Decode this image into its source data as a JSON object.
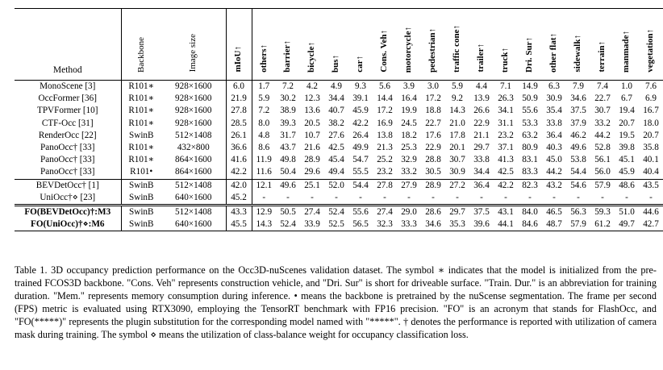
{
  "headers": {
    "method": "Method",
    "backbone": "Backbone",
    "image_size": "Image size",
    "miou": "mIoU↑",
    "classes": [
      "others↑",
      "barrier↑",
      "bicycle↑",
      "bus↑",
      "car↑",
      "Cons. Veh↑",
      "motorcycle↑",
      "pedestrian↑",
      "traffic cone↑",
      "trailer↑",
      "truck↑",
      "Dri. Sur↑",
      "other flat↑",
      "sidewalk↑",
      "terrain↑",
      "manmade↑",
      "vegetation↑"
    ]
  },
  "rows_group1": [
    {
      "method": "MonoScene [3]",
      "backbone": "R101∗",
      "size": "928×1600",
      "miou": "6.0",
      "vals": [
        "1.7",
        "7.2",
        "4.2",
        "4.9",
        "9.3",
        "5.6",
        "3.9",
        "3.0",
        "5.9",
        "4.4",
        "7.1",
        "14.9",
        "6.3",
        "7.9",
        "7.4",
        "1.0",
        "7.6"
      ]
    },
    {
      "method": "OccFormer [36]",
      "backbone": "R101∗",
      "size": "928×1600",
      "miou": "21.9",
      "vals": [
        "5.9",
        "30.2",
        "12.3",
        "34.4",
        "39.1",
        "14.4",
        "16.4",
        "17.2",
        "9.2",
        "13.9",
        "26.3",
        "50.9",
        "30.9",
        "34.6",
        "22.7",
        "6.7",
        "6.9"
      ]
    },
    {
      "method": "TPVFormer [10]",
      "backbone": "R101∗",
      "size": "928×1600",
      "miou": "27.8",
      "vals": [
        "7.2",
        "38.9",
        "13.6",
        "40.7",
        "45.9",
        "17.2",
        "19.9",
        "18.8",
        "14.3",
        "26.6",
        "34.1",
        "55.6",
        "35.4",
        "37.5",
        "30.7",
        "19.4",
        "16.7"
      ]
    },
    {
      "method": "CTF-Occ [31]",
      "backbone": "R101∗",
      "size": "928×1600",
      "miou": "28.5",
      "vals": [
        "8.0",
        "39.3",
        "20.5",
        "38.2",
        "42.2",
        "16.9",
        "24.5",
        "22.7",
        "21.0",
        "22.9",
        "31.1",
        "53.3",
        "33.8",
        "37.9",
        "33.2",
        "20.7",
        "18.0"
      ]
    },
    {
      "method": "RenderOcc [22]",
      "backbone": "SwinB",
      "size": "512×1408",
      "miou": "26.1",
      "vals": [
        "4.8",
        "31.7",
        "10.7",
        "27.6",
        "26.4",
        "13.8",
        "18.2",
        "17.6",
        "17.8",
        "21.1",
        "23.2",
        "63.2",
        "36.4",
        "46.2",
        "44.2",
        "19.5",
        "20.7"
      ]
    },
    {
      "method": "PanoOcc† [33]",
      "backbone": "R101∗",
      "size": "432×800",
      "miou": "36.6",
      "vals": [
        "8.6",
        "43.7",
        "21.6",
        "42.5",
        "49.9",
        "21.3",
        "25.3",
        "22.9",
        "20.1",
        "29.7",
        "37.1",
        "80.9",
        "40.3",
        "49.6",
        "52.8",
        "39.8",
        "35.8"
      ]
    },
    {
      "method": "PanoOcc† [33]",
      "backbone": "R101∗",
      "size": "864×1600",
      "miou": "41.6",
      "vals": [
        "11.9",
        "49.8",
        "28.9",
        "45.4",
        "54.7",
        "25.2",
        "32.9",
        "28.8",
        "30.7",
        "33.8",
        "41.3",
        "83.1",
        "45.0",
        "53.8",
        "56.1",
        "45.1",
        "40.1"
      ]
    },
    {
      "method": "PanoOcc† [33]",
      "backbone": "R101•",
      "size": "864×1600",
      "miou": "42.2",
      "vals": [
        "11.6",
        "50.4",
        "29.6",
        "49.4",
        "55.5",
        "23.2",
        "33.2",
        "30.5",
        "30.9",
        "34.4",
        "42.5",
        "83.3",
        "44.2",
        "54.4",
        "56.0",
        "45.9",
        "40.4"
      ]
    }
  ],
  "rows_group2": [
    {
      "method": "BEVDetOcc† [1]",
      "backbone": "SwinB",
      "size": "512×1408",
      "miou": "42.0",
      "vals": [
        "12.1",
        "49.6",
        "25.1",
        "52.0",
        "54.4",
        "27.8",
        "27.9",
        "28.9",
        "27.2",
        "36.4",
        "42.2",
        "82.3",
        "43.2",
        "54.6",
        "57.9",
        "48.6",
        "43.5"
      ]
    },
    {
      "method": "UniOcc†⋄ [23]",
      "backbone": "SwinB",
      "size": "640×1600",
      "miou": "45.2",
      "vals": [
        "-",
        "-",
        "-",
        "-",
        "-",
        "-",
        "-",
        "-",
        "-",
        "-",
        "-",
        "-",
        "-",
        "-",
        "-",
        "-",
        "-"
      ]
    }
  ],
  "rows_group3": [
    {
      "method": "FO(BEVDetOcc)†:M3",
      "backbone": "SwinB",
      "size": "512×1408",
      "miou": "43.3",
      "vals": [
        "12.9",
        "50.5",
        "27.4",
        "52.4",
        "55.6",
        "27.4",
        "29.0",
        "28.6",
        "29.7",
        "37.5",
        "43.1",
        "84.0",
        "46.5",
        "56.3",
        "59.3",
        "51.0",
        "44.6"
      ]
    },
    {
      "method": "FO(UniOcc)†⋄:M6",
      "backbone": "SwinB",
      "size": "640×1600",
      "miou": "45.5",
      "vals": [
        "14.3",
        "52.4",
        "33.9",
        "52.5",
        "56.5",
        "32.3",
        "33.3",
        "34.6",
        "35.3",
        "39.6",
        "44.1",
        "84.6",
        "48.7",
        "57.9",
        "61.2",
        "49.7",
        "42.7"
      ]
    }
  ],
  "caption": "Table 1. 3D occupancy prediction performance on the Occ3D-nuScenes validation dataset. The symbol ∗ indicates that the model is initialized from the pre-trained FCOS3D backbone. \"Cons. Veh\" represents construction vehicle, and \"Dri. Sur\" is short for driveable surface. \"Train. Dur.\" is an abbreviation for training duration. \"Mem.\" represents memory consumption during inference. • means the backbone is pretrained by the nuScense segmentation. The frame per second (FPS) metric is evaluated using RTX3090, employing the TensorRT benchmark with FP16 precision. \"FO\" is an acronym that stands for FlashOcc, and \"FO(*****)\" represents the plugin substitution for the corresponding model named with \"*****\". † denotes the performance is reported with utilization of camera mask during training. The symbol ⋄ means the utilization of class-balance weight for occupancy classification loss."
}
